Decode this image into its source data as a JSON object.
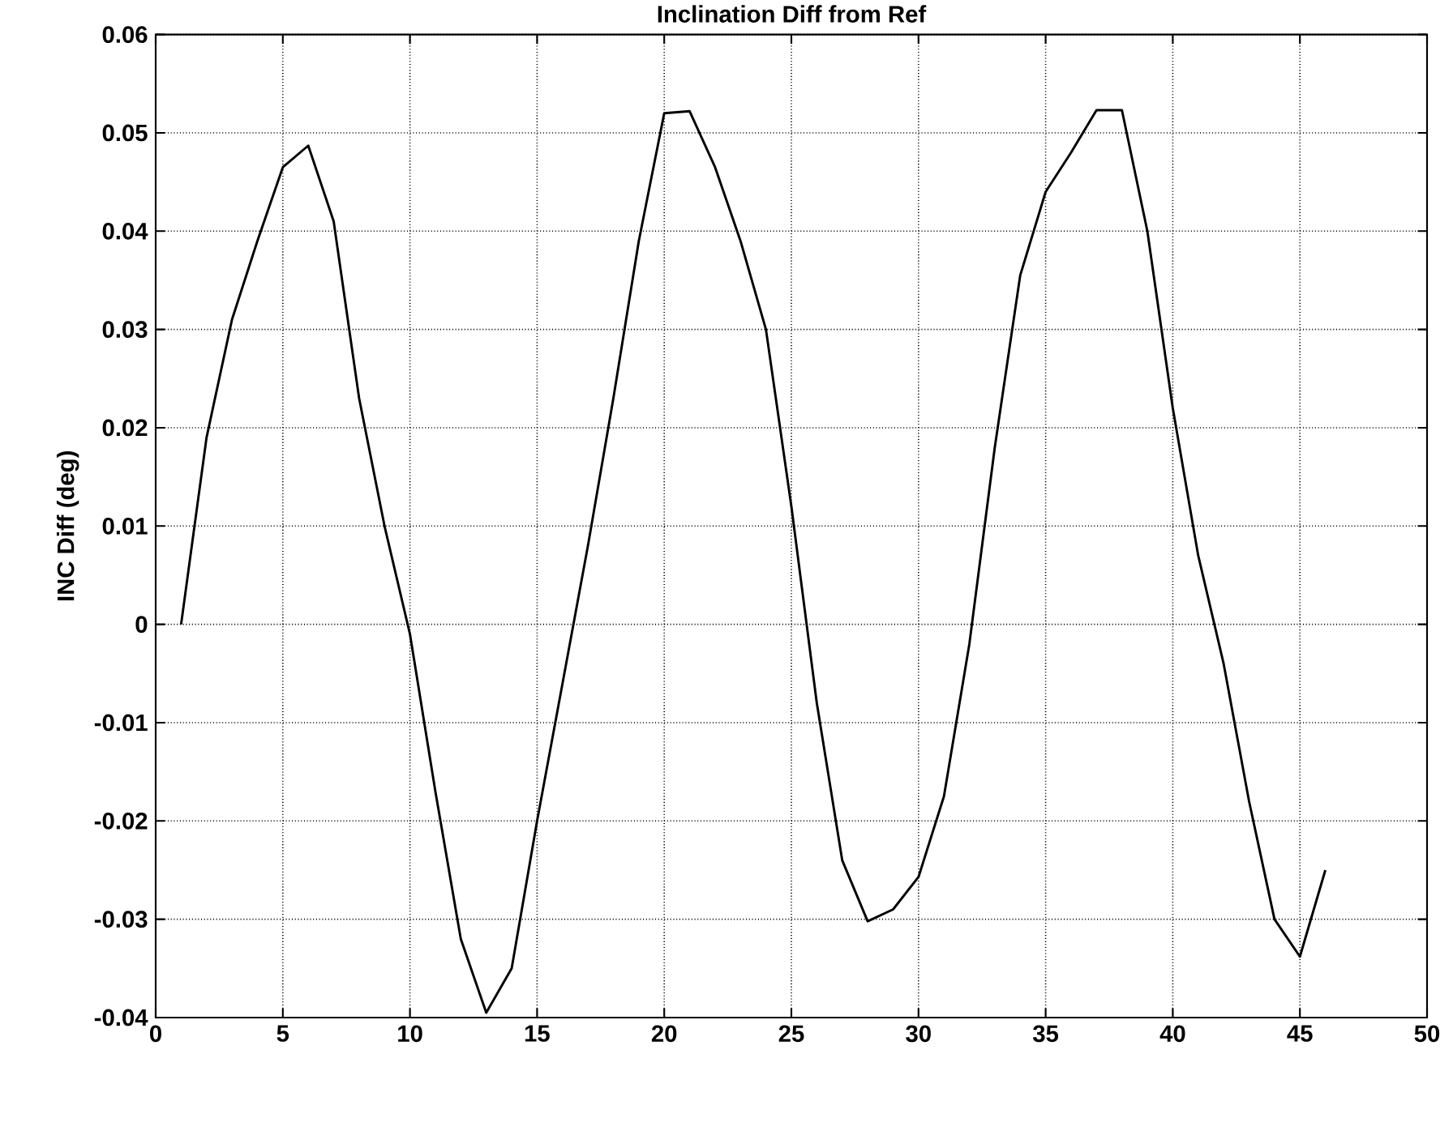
{
  "chart_data": {
    "type": "line",
    "title": "Inclination Diff from Ref",
    "ylabel": "INC Diff (deg)",
    "x": [
      1,
      2,
      3,
      4,
      5,
      6,
      7,
      8,
      9,
      10,
      11,
      12,
      13,
      14,
      15,
      16,
      17,
      18,
      19,
      20,
      21,
      22,
      23,
      24,
      25,
      26,
      27,
      28,
      29,
      30,
      31,
      32,
      33,
      34,
      35,
      36,
      37,
      38,
      39,
      40,
      41,
      42,
      43,
      44,
      45,
      46
    ],
    "series": [
      {
        "color": "#000000",
        "values": [
          0,
          0.019,
          0.031,
          0.039,
          0.0465,
          0.0487,
          0.041,
          0.023,
          0.01,
          -0.001,
          -0.017,
          -0.032,
          -0.0395,
          -0.035,
          -0.02,
          -0.006,
          0.008,
          0.023,
          0.039,
          0.052,
          0.0522,
          0.0465,
          0.039,
          0.03,
          0.012,
          -0.008,
          -0.024,
          -0.0302,
          -0.029,
          -0.0257,
          -0.0175,
          -0.002,
          0.018,
          0.0355,
          0.044,
          0.048,
          0.0523,
          0.0523,
          0.04,
          0.022,
          0.007,
          -0.004,
          -0.018,
          -0.03,
          -0.0338,
          -0.025
        ]
      }
    ],
    "xlim": [
      0,
      50
    ],
    "xticks": [
      0,
      5,
      10,
      15,
      20,
      25,
      30,
      35,
      40,
      45,
      50
    ],
    "ylim": [
      -0.04,
      0.06
    ],
    "yticks": [
      -0.04,
      -0.03,
      -0.02,
      -0.01,
      0,
      0.01,
      0.02,
      0.03,
      0.04,
      0.05,
      0.06
    ],
    "grid": true,
    "line_style": "solid",
    "marker": "none"
  }
}
